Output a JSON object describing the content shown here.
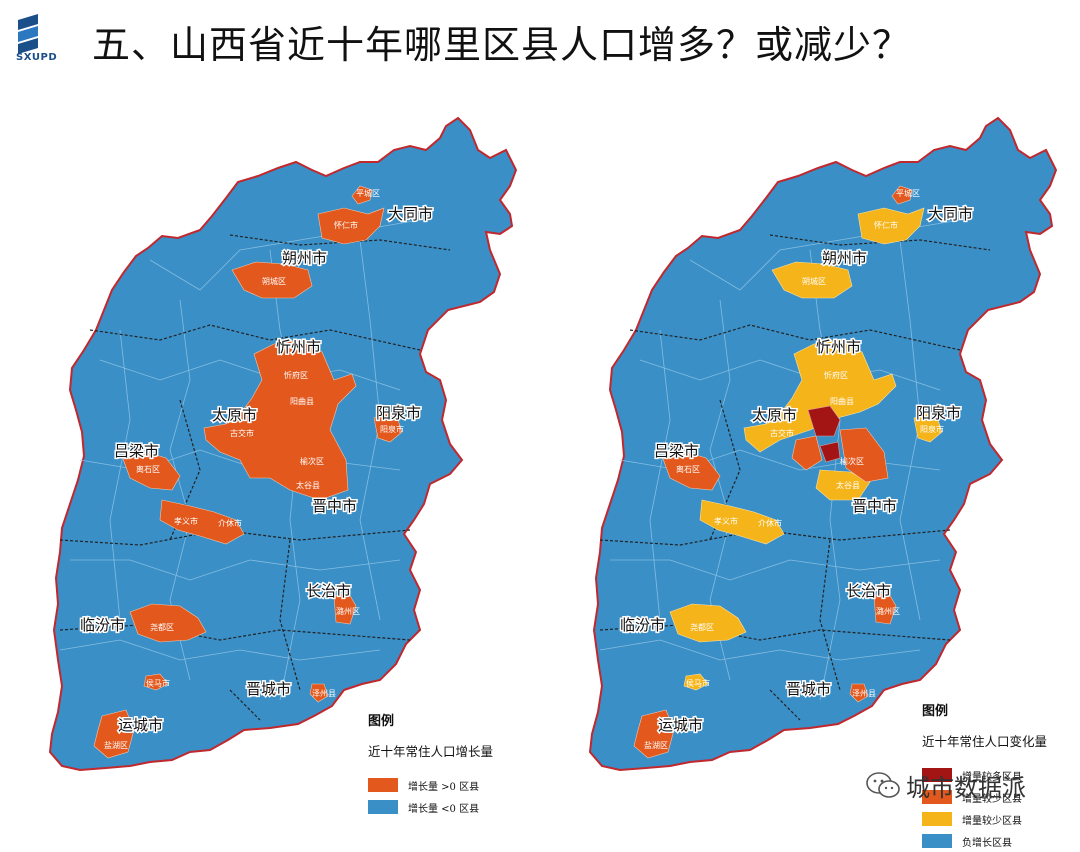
{
  "header": {
    "title": "五、山西省近十年哪里区县人口增多？或减少？",
    "logo_text": "SXUPD"
  },
  "colors": {
    "base": "#3a8fc7",
    "increase": "#e2581d",
    "large_increase": "#a31515",
    "moderate_increase": "#f5a623",
    "border": "#c0282d"
  },
  "left_map": {
    "cities": [
      "大同市",
      "朔州市",
      "忻州市",
      "太原市",
      "阳泉市",
      "吕梁市",
      "晋中市",
      "长治市",
      "临汾市",
      "晋城市",
      "运城市"
    ],
    "districts": [
      "平城区",
      "怀仁市",
      "朔城区",
      "忻府区",
      "阳曲县",
      "古交市",
      "阳泉市",
      "离石区",
      "榆次区",
      "太谷县",
      "孝义市",
      "介休市",
      "潞州区",
      "尧都区",
      "侯马市",
      "泽州县",
      "盐湖区"
    ],
    "legend": {
      "title": "图例",
      "subtitle": "近十年常住人口增长量",
      "items": [
        {
          "label": "增长量 >0   区县"
        },
        {
          "label": "增长量 <0   区县"
        }
      ]
    }
  },
  "right_map": {
    "cities": [
      "大同市",
      "朔州市",
      "忻州市",
      "太原市",
      "阳泉市",
      "吕梁市",
      "晋中市",
      "长治市",
      "临汾市",
      "晋城市",
      "运城市"
    ],
    "districts": [
      "平城区",
      "怀仁市",
      "朔城区",
      "忻府区",
      "阳曲县",
      "古交市",
      "阳泉市",
      "离石区",
      "榆次区",
      "太谷县",
      "孝义市",
      "介休市",
      "潞州区",
      "尧都区",
      "侯马市",
      "泽州县",
      "盐湖区"
    ],
    "legend": {
      "title": "图例",
      "subtitle": "近十年常住人口变化量",
      "items": [
        {
          "label": "增量较多区县"
        },
        {
          "label": "增量较少区县"
        },
        {
          "label": "增量较少区县"
        },
        {
          "label": "负增长区县"
        }
      ]
    }
  },
  "watermark": {
    "text": "城市数据派"
  }
}
